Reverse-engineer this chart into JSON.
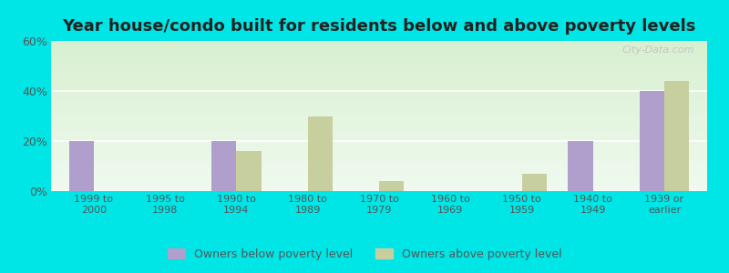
{
  "title": "Year house/condo built for residents below and above poverty levels",
  "categories": [
    "1999 to\n2000",
    "1995 to\n1998",
    "1990 to\n1994",
    "1980 to\n1989",
    "1970 to\n1979",
    "1960 to\n1969",
    "1950 to\n1959",
    "1940 to\n1949",
    "1939 or\nearlier"
  ],
  "below_poverty": [
    20,
    0,
    20,
    0,
    0,
    0,
    0,
    20,
    40
  ],
  "above_poverty": [
    0,
    0,
    16,
    30,
    4,
    0,
    7,
    0,
    44
  ],
  "below_color": "#b09fcc",
  "above_color": "#c8cf9f",
  "ylim": [
    0,
    60
  ],
  "yticks": [
    0,
    20,
    40,
    60
  ],
  "ytick_labels": [
    "0%",
    "20%",
    "40%",
    "60%"
  ],
  "outer_color": "#00e5e5",
  "title_fontsize": 13,
  "legend_below": "Owners below poverty level",
  "legend_above": "Owners above poverty level",
  "bar_width": 0.35,
  "watermark": "City-Data.com"
}
